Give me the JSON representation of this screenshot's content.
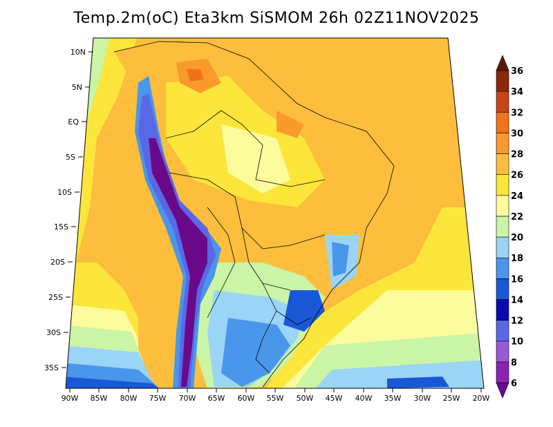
{
  "title": "Temp.2m(oC) Eta3km SiSMOM 26h 02Z11NOV2025",
  "lat_labels": [
    "10N",
    "5N",
    "EQ",
    "5S",
    "10S",
    "15S",
    "20S",
    "25S",
    "30S",
    "35S"
  ],
  "lon_labels": [
    "90W",
    "85W",
    "80W",
    "75W",
    "70W",
    "65W",
    "60W",
    "55W",
    "50W",
    "45W",
    "40W",
    "35W",
    "30W",
    "25W",
    "20W"
  ],
  "colorbar": {
    "labels": [
      "6",
      "8",
      "10",
      "12",
      "14",
      "16",
      "18",
      "20",
      "22",
      "24",
      "26",
      "28",
      "30",
      "32",
      "34",
      "36"
    ],
    "colors": [
      "#6a0a8a",
      "#8a22b4",
      "#9a5ad6",
      "#5a68e6",
      "#0a0ab0",
      "#1a58d6",
      "#4a96ea",
      "#9ad4f6",
      "#caf4a6",
      "#fcfc9c",
      "#fce63c",
      "#fcbe3c",
      "#fa9a2c",
      "#f2721a",
      "#c6461a",
      "#8a2a0a",
      "#5a1a0a"
    ]
  }
}
